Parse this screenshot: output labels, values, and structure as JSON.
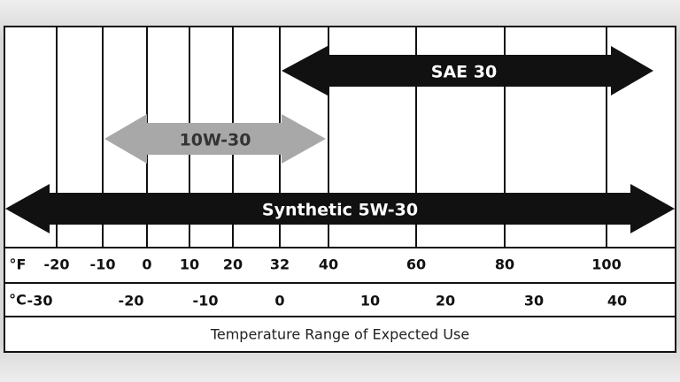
{
  "fahrenheit": {
    "unit": "°F",
    "ticks": [
      -20,
      -10,
      0,
      10,
      20,
      32,
      40,
      60,
      80,
      100
    ]
  },
  "celsius": {
    "unit": "°C",
    "ticks": [
      -30,
      -20,
      -10,
      0,
      10,
      20,
      30,
      40
    ]
  },
  "arrows": [
    {
      "label": "SAE 30"
    },
    {
      "label": "10W-30"
    },
    {
      "label": "Synthetic 5W-30"
    }
  ],
  "footer": "Temperature Range of Expected Use"
}
